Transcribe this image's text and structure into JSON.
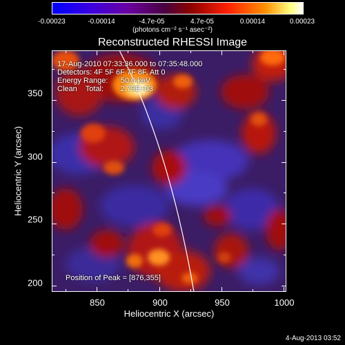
{
  "colorbar": {
    "ticks": [
      "-0.00023",
      "-0.00014",
      "-4.7e-05",
      "4.7e-05",
      "0.00014",
      "0.00023"
    ],
    "units": "(photons cm⁻² s⁻¹ asec⁻²)"
  },
  "chart_data": {
    "type": "heatmap",
    "title": "Reconstructed RHESSI Image",
    "xlabel": "Heliocentric X (arcsec)",
    "ylabel": "Heliocentric Y (arcsec)",
    "xlim": [
      814,
      1002
    ],
    "ylim": [
      195,
      390
    ],
    "x_ticks": [
      "850",
      "900",
      "950",
      "1000"
    ],
    "y_ticks": [
      "200",
      "250",
      "300",
      "350"
    ],
    "colorbar_range": [
      -0.00023,
      0.00023
    ],
    "peak": [
      876,
      355
    ],
    "annotations": [
      "17-Aug-2010 07:33:36.000 to 07:35:48.000",
      "Detectors: 4F 5F 6F 7F 8F, Att 0",
      "Energy Range:      50.0 keV",
      "Clean    Total:        2.79E+03"
    ],
    "peak_label": "Position of Peak = [876,355]"
  },
  "footer": "4-Aug-2013 03:52"
}
